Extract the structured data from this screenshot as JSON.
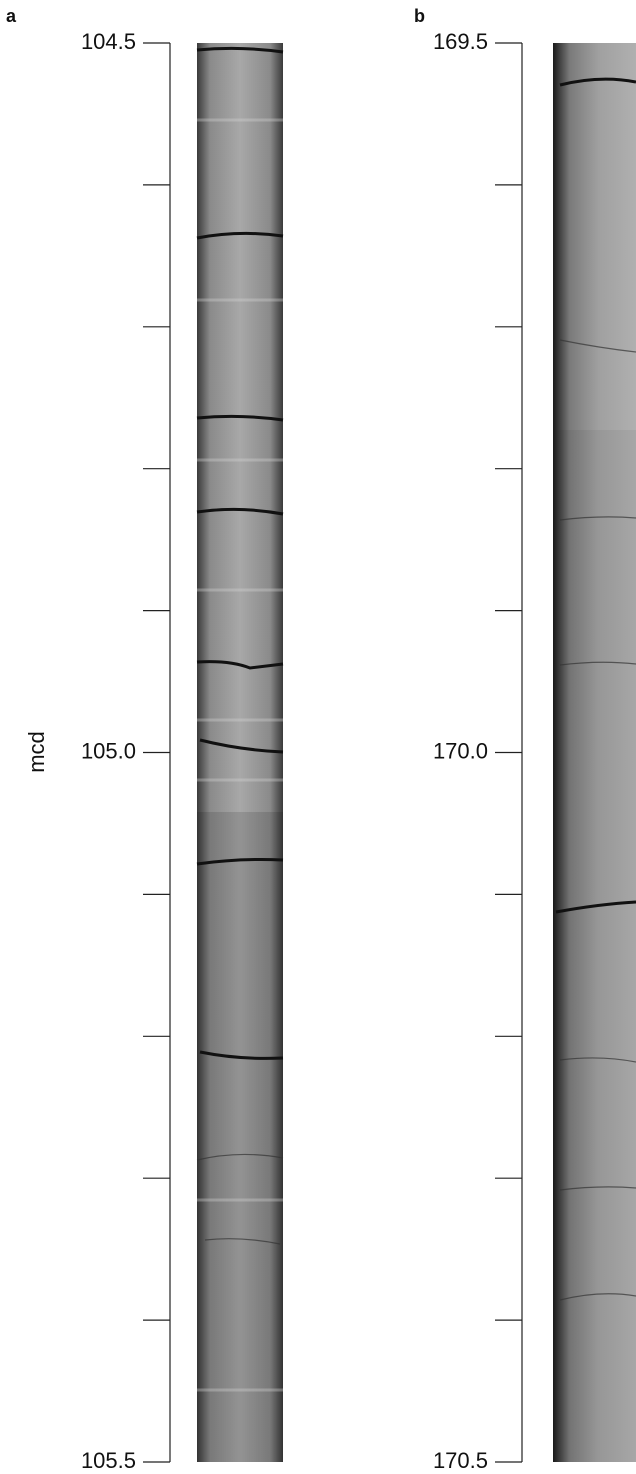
{
  "chart_data": [
    {
      "type": "core-depth",
      "panel_label": "a",
      "ylabel": "mcd",
      "ylim": [
        104.5,
        105.5
      ],
      "yticks": [
        104.5,
        {
          "value": 105.0,
          "label": "105.0"
        },
        105.5
      ],
      "minor_yticks": [
        104.6,
        104.7,
        104.8,
        104.9,
        105.1,
        105.2,
        105.3,
        105.4
      ]
    },
    {
      "type": "core-depth",
      "panel_label": "b",
      "ylim": [
        169.5,
        170.5
      ],
      "yticks": [
        169.5,
        {
          "value": 170.0,
          "label": "170.0"
        },
        170.5
      ],
      "minor_yticks": [
        169.6,
        169.7,
        169.8,
        169.9,
        170.1,
        170.2,
        170.3,
        170.4
      ]
    }
  ]
}
